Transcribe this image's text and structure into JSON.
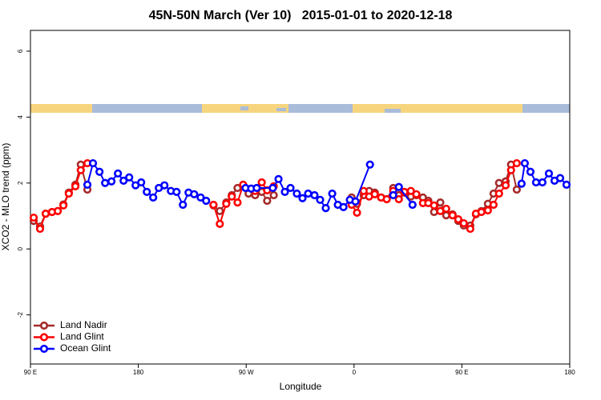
{
  "chart_data": {
    "type": "line",
    "title": "45N-50N March (Ver 10)   2015-01-01 to 2020-12-18",
    "x_label": "Longitude",
    "y_label": "XCO2 - MLO trend (ppm)",
    "xlim": [
      90,
      540
    ],
    "ylim": [
      -3.49,
      6.63
    ],
    "xticks": [
      {
        "value": 90,
        "label": "90 E"
      },
      180,
      {
        "value": 270,
        "label": "90 W"
      },
      {
        "value": 360,
        "label": "0"
      },
      {
        "value": 450,
        "label": "90 E"
      },
      {
        "value": 540,
        "label": "180"
      }
    ],
    "yticks": [
      -2,
      0,
      2,
      4,
      6
    ],
    "legend": "bottom-left",
    "series": [
      {
        "name": "Land Nadir",
        "color": "#a52a2a",
        "x": [
          92.7,
          98,
          102.7,
          108,
          112.8,
          117.5,
          122,
          127.5,
          132,
          137.5,
          242.7,
          248,
          253.4,
          258,
          262.8,
          267.5,
          272,
          277.5,
          283,
          287.5,
          293,
          358,
          362.5,
          368,
          372.6,
          377.3,
          382.6,
          387.3,
          392.7,
          397.4,
          402,
          407.4,
          412,
          417.5,
          422,
          426.8,
          432,
          436.9,
          442.2,
          447,
          451.6,
          457,
          461.7,
          466.3,
          471.7,
          476.4,
          481,
          486.5,
          491,
          495.8
        ],
        "values": [
          0.85,
          0.68,
          1.07,
          1.12,
          1.15,
          1.35,
          1.71,
          1.95,
          2.56,
          1.8,
          1.32,
          1.15,
          1.41,
          1.63,
          1.85,
          1.9,
          1.68,
          1.63,
          1.73,
          1.46,
          1.63,
          1.56,
          1.37,
          1.63,
          1.76,
          1.71,
          1.56,
          1.51,
          1.85,
          1.63,
          1.71,
          1.59,
          1.63,
          1.56,
          1.46,
          1.12,
          1.41,
          1.02,
          1.05,
          0.85,
          0.71,
          0.71,
          1.05,
          1.15,
          1.37,
          1.68,
          2.0,
          2.05,
          2.56,
          1.8
        ]
      },
      {
        "name": "Land Glint",
        "color": "#ff0000",
        "x": [
          92.7,
          98,
          102.7,
          108,
          112.8,
          117.5,
          122,
          127.5,
          132,
          137.5,
          242.7,
          248,
          253.4,
          258,
          262.8,
          267.5,
          277.5,
          283,
          287.5,
          293,
          358,
          362.5,
          368,
          372.6,
          377.3,
          382.6,
          387.3,
          392.7,
          397.4,
          402,
          407.4,
          412,
          417.5,
          422,
          426.8,
          432,
          436.9,
          442.2,
          447,
          451.6,
          457,
          461.7,
          466.3,
          471.7,
          476.4,
          481,
          486.5,
          491,
          495.8
        ],
        "values": [
          0.95,
          0.61,
          1.07,
          1.12,
          1.15,
          1.32,
          1.68,
          1.9,
          2.39,
          2.6,
          1.34,
          0.76,
          1.37,
          1.59,
          1.41,
          1.95,
          1.76,
          2.02,
          1.78,
          1.9,
          1.34,
          1.1,
          1.76,
          1.59,
          1.66,
          1.56,
          1.51,
          1.76,
          1.51,
          1.73,
          1.76,
          1.66,
          1.39,
          1.39,
          1.32,
          1.15,
          1.22,
          1.02,
          0.9,
          0.78,
          0.61,
          1.07,
          1.12,
          1.17,
          1.34,
          1.68,
          1.93,
          2.39,
          2.6
        ]
      },
      {
        "name": "Ocean Glint",
        "color": "#0000ff",
        "x": [
          137.5,
          142.2,
          147.6,
          152.3,
          157.6,
          163,
          167.7,
          172.4,
          177.7,
          182.4,
          187.1,
          192.4,
          197.1,
          201.8,
          207.2,
          211.9,
          217.2,
          221.9,
          226.6,
          232,
          236.6,
          269.5,
          274.2,
          278.8,
          292.2,
          297,
          302.3,
          307,
          312.3,
          317,
          321.7,
          327,
          331.7,
          336.4,
          341.8,
          346.5,
          351.2,
          356.5,
          361.2,
          373.3,
          392.7,
          397.4,
          408.8,
          499.8,
          502.5,
          507.2,
          511.9,
          517.2,
          522.6,
          527.3,
          532,
          537.3
        ],
        "values": [
          1.95,
          2.6,
          2.34,
          2.0,
          2.05,
          2.29,
          2.07,
          2.17,
          1.93,
          2.02,
          1.73,
          1.56,
          1.85,
          1.93,
          1.76,
          1.73,
          1.34,
          1.71,
          1.66,
          1.56,
          1.46,
          1.85,
          1.83,
          1.85,
          1.85,
          2.12,
          1.73,
          1.85,
          1.68,
          1.54,
          1.68,
          1.63,
          1.49,
          1.24,
          1.68,
          1.34,
          1.27,
          1.49,
          1.44,
          2.56,
          1.63,
          1.88,
          1.34,
          1.98,
          2.6,
          2.34,
          2.02,
          2.02,
          2.29,
          2.07,
          2.15,
          1.95
        ]
      }
    ]
  }
}
